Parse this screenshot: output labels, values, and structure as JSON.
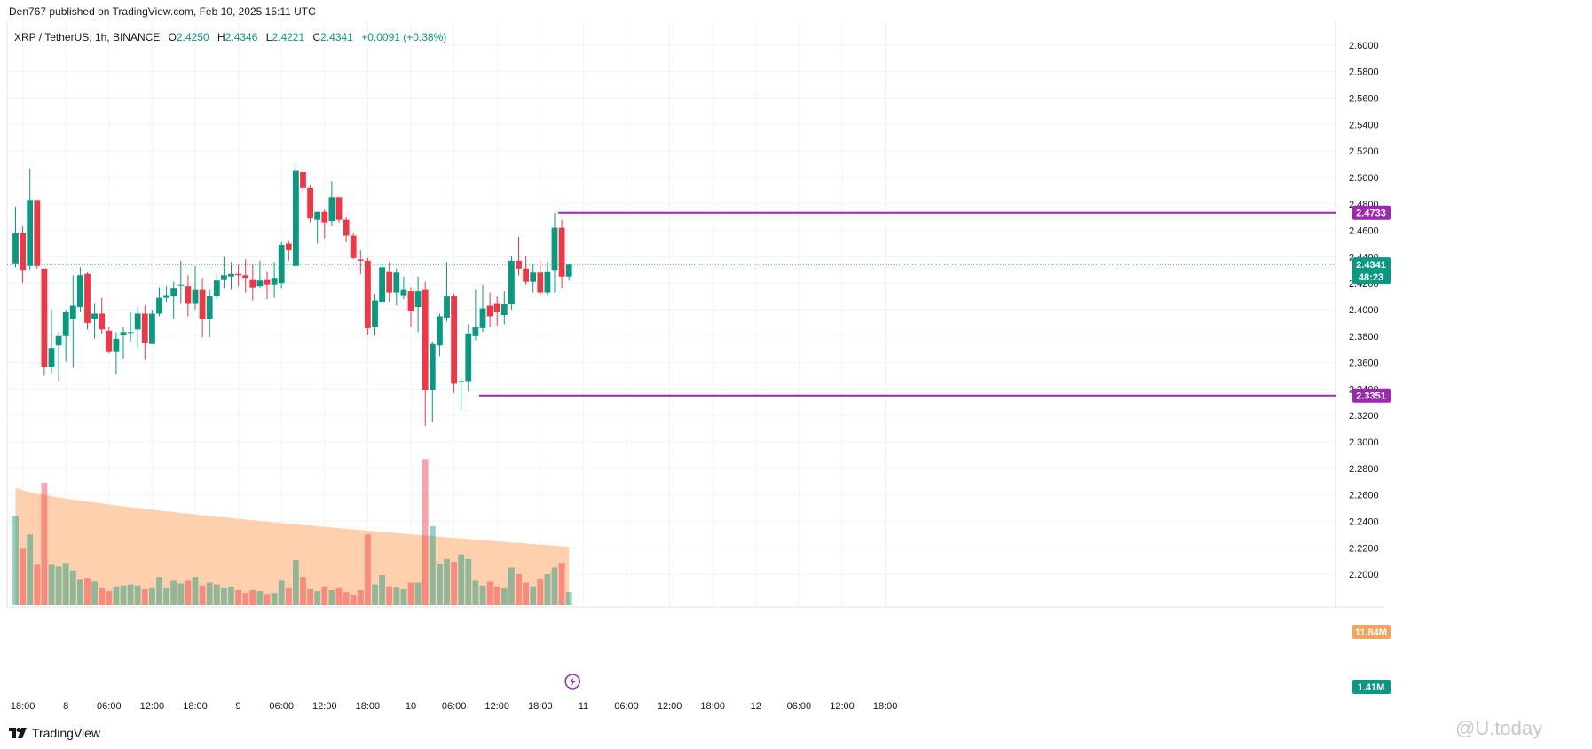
{
  "header": {
    "published": "Den767 published on TradingView.com, Feb 10, 2025 15:11 UTC"
  },
  "legend": {
    "symbol": "XRP / TetherUS, 1h, BINANCE",
    "o_label": "O",
    "o": "2.4250",
    "h_label": "H",
    "h": "2.4346",
    "l_label": "L",
    "l": "2.4221",
    "c_label": "C",
    "c": "2.4341",
    "change": "+0.0091 (+0.38%)"
  },
  "footer": {
    "logo_text": "TradingView",
    "logo_icon": "tradingview-logo-icon",
    "watermark": "@U.today"
  },
  "colors": {
    "up": "#089981",
    "down": "#f23645",
    "level": "#9c27b0",
    "vol_ma": "#ffcba4",
    "grid": "#f0f3fa"
  },
  "chart_data": {
    "type": "candlestick",
    "y_ticks": [
      "2.6000",
      "2.5800",
      "2.5600",
      "2.5400",
      "2.5200",
      "2.5000",
      "2.4800",
      "2.4600",
      "2.4400",
      "2.4200",
      "2.4000",
      "2.3800",
      "2.3600",
      "2.3400",
      "2.3200",
      "2.3000",
      "2.2800",
      "2.2600",
      "2.2400",
      "2.2200",
      "2.2000"
    ],
    "ylim": [
      2.19,
      2.61
    ],
    "x_ticks": [
      {
        "bar": 1,
        "label": "18:00"
      },
      {
        "bar": 7,
        "label": "8"
      },
      {
        "bar": 13,
        "label": "06:00"
      },
      {
        "bar": 19,
        "label": "12:00"
      },
      {
        "bar": 25,
        "label": "18:00"
      },
      {
        "bar": 31,
        "label": "9"
      },
      {
        "bar": 37,
        "label": "06:00"
      },
      {
        "bar": 43,
        "label": "12:00"
      },
      {
        "bar": 49,
        "label": "18:00"
      },
      {
        "bar": 55,
        "label": "10"
      },
      {
        "bar": 61,
        "label": "06:00"
      },
      {
        "bar": 67,
        "label": "12:00"
      },
      {
        "bar": 73,
        "label": "18:00"
      },
      {
        "bar": 79,
        "label": "11"
      },
      {
        "bar": 85,
        "label": "06:00"
      },
      {
        "bar": 91,
        "label": "12:00"
      },
      {
        "bar": 97,
        "label": "18:00"
      },
      {
        "bar": 103,
        "label": "12"
      },
      {
        "bar": 109,
        "label": "06:00"
      },
      {
        "bar": 115,
        "label": "12:00"
      },
      {
        "bar": 121,
        "label": "18:00"
      }
    ],
    "candles": [
      {
        "o": 2.435,
        "h": 2.478,
        "l": 2.432,
        "c": 2.458,
        "v": 9.5
      },
      {
        "o": 2.458,
        "h": 2.463,
        "l": 2.42,
        "c": 2.43,
        "v": 6.0
      },
      {
        "o": 2.433,
        "h": 2.507,
        "l": 2.43,
        "c": 2.483,
        "v": 7.5
      },
      {
        "o": 2.483,
        "h": 2.483,
        "l": 2.431,
        "c": 2.433,
        "v": 4.3
      },
      {
        "o": 2.431,
        "h": 2.431,
        "l": 2.35,
        "c": 2.357,
        "v": 13.0
      },
      {
        "o": 2.357,
        "h": 2.4,
        "l": 2.352,
        "c": 2.371,
        "v": 4.3
      },
      {
        "o": 2.373,
        "h": 2.383,
        "l": 2.346,
        "c": 2.38,
        "v": 4.1
      },
      {
        "o": 2.38,
        "h": 2.4,
        "l": 2.361,
        "c": 2.398,
        "v": 4.5
      },
      {
        "o": 2.393,
        "h": 2.426,
        "l": 2.356,
        "c": 2.403,
        "v": 3.7
      },
      {
        "o": 2.402,
        "h": 2.432,
        "l": 2.398,
        "c": 2.426,
        "v": 2.7
      },
      {
        "o": 2.427,
        "h": 2.428,
        "l": 2.385,
        "c": 2.39,
        "v": 2.9
      },
      {
        "o": 2.393,
        "h": 2.405,
        "l": 2.378,
        "c": 2.397,
        "v": 2.5
      },
      {
        "o": 2.397,
        "h": 2.409,
        "l": 2.382,
        "c": 2.385,
        "v": 1.8
      },
      {
        "o": 2.384,
        "h": 2.387,
        "l": 2.367,
        "c": 2.368,
        "v": 1.5
      },
      {
        "o": 2.368,
        "h": 2.383,
        "l": 2.351,
        "c": 2.378,
        "v": 2.0
      },
      {
        "o": 2.381,
        "h": 2.387,
        "l": 2.363,
        "c": 2.383,
        "v": 2.1
      },
      {
        "o": 2.383,
        "h": 2.398,
        "l": 2.376,
        "c": 2.383,
        "v": 2.2
      },
      {
        "o": 2.385,
        "h": 2.402,
        "l": 2.371,
        "c": 2.397,
        "v": 2.1
      },
      {
        "o": 2.397,
        "h": 2.403,
        "l": 2.362,
        "c": 2.375,
        "v": 1.7
      },
      {
        "o": 2.374,
        "h": 2.4,
        "l": 2.374,
        "c": 2.397,
        "v": 1.8
      },
      {
        "o": 2.397,
        "h": 2.417,
        "l": 2.395,
        "c": 2.409,
        "v": 3.0
      },
      {
        "o": 2.409,
        "h": 2.418,
        "l": 2.406,
        "c": 2.411,
        "v": 1.8
      },
      {
        "o": 2.41,
        "h": 2.421,
        "l": 2.393,
        "c": 2.416,
        "v": 2.6
      },
      {
        "o": 2.419,
        "h": 2.437,
        "l": 2.405,
        "c": 2.419,
        "v": 2.3
      },
      {
        "o": 2.418,
        "h": 2.426,
        "l": 2.395,
        "c": 2.405,
        "v": 2.6
      },
      {
        "o": 2.405,
        "h": 2.433,
        "l": 2.4,
        "c": 2.415,
        "v": 3.0
      },
      {
        "o": 2.415,
        "h": 2.424,
        "l": 2.379,
        "c": 2.393,
        "v": 2.1
      },
      {
        "o": 2.393,
        "h": 2.415,
        "l": 2.379,
        "c": 2.41,
        "v": 2.4
      },
      {
        "o": 2.41,
        "h": 2.427,
        "l": 2.407,
        "c": 2.422,
        "v": 2.2
      },
      {
        "o": 2.423,
        "h": 2.44,
        "l": 2.416,
        "c": 2.426,
        "v": 1.8
      },
      {
        "o": 2.425,
        "h": 2.436,
        "l": 2.415,
        "c": 2.427,
        "v": 2.0
      },
      {
        "o": 2.427,
        "h": 2.434,
        "l": 2.418,
        "c": 2.426,
        "v": 1.6
      },
      {
        "o": 2.426,
        "h": 2.438,
        "l": 2.413,
        "c": 2.424,
        "v": 1.3
      },
      {
        "o": 2.423,
        "h": 2.434,
        "l": 2.407,
        "c": 2.417,
        "v": 1.6
      },
      {
        "o": 2.418,
        "h": 2.437,
        "l": 2.417,
        "c": 2.422,
        "v": 1.5
      },
      {
        "o": 2.423,
        "h": 2.429,
        "l": 2.408,
        "c": 2.419,
        "v": 1.2
      },
      {
        "o": 2.419,
        "h": 2.436,
        "l": 2.409,
        "c": 2.424,
        "v": 1.3
      },
      {
        "o": 2.42,
        "h": 2.451,
        "l": 2.416,
        "c": 2.449,
        "v": 2.6
      },
      {
        "o": 2.45,
        "h": 2.452,
        "l": 2.437,
        "c": 2.445,
        "v": 1.8
      },
      {
        "o": 2.433,
        "h": 2.51,
        "l": 2.432,
        "c": 2.505,
        "v": 4.8
      },
      {
        "o": 2.504,
        "h": 2.507,
        "l": 2.488,
        "c": 2.492,
        "v": 3.0
      },
      {
        "o": 2.492,
        "h": 2.494,
        "l": 2.466,
        "c": 2.469,
        "v": 1.7
      },
      {
        "o": 2.468,
        "h": 2.474,
        "l": 2.45,
        "c": 2.474,
        "v": 1.5
      },
      {
        "o": 2.474,
        "h": 2.476,
        "l": 2.454,
        "c": 2.466,
        "v": 2.0
      },
      {
        "o": 2.467,
        "h": 2.497,
        "l": 2.463,
        "c": 2.485,
        "v": 1.6
      },
      {
        "o": 2.485,
        "h": 2.485,
        "l": 2.466,
        "c": 2.468,
        "v": 1.8
      },
      {
        "o": 2.468,
        "h": 2.47,
        "l": 2.451,
        "c": 2.456,
        "v": 1.4
      },
      {
        "o": 2.456,
        "h": 2.458,
        "l": 2.438,
        "c": 2.439,
        "v": 1.1
      },
      {
        "o": 2.438,
        "h": 2.445,
        "l": 2.427,
        "c": 2.437,
        "v": 1.6
      },
      {
        "o": 2.437,
        "h": 2.439,
        "l": 2.381,
        "c": 2.386,
        "v": 7.5
      },
      {
        "o": 2.387,
        "h": 2.412,
        "l": 2.381,
        "c": 2.407,
        "v": 2.2
      },
      {
        "o": 2.406,
        "h": 2.436,
        "l": 2.404,
        "c": 2.432,
        "v": 3.2
      },
      {
        "o": 2.429,
        "h": 2.436,
        "l": 2.406,
        "c": 2.413,
        "v": 2.0
      },
      {
        "o": 2.413,
        "h": 2.431,
        "l": 2.403,
        "c": 2.428,
        "v": 1.9
      },
      {
        "o": 2.411,
        "h": 2.425,
        "l": 2.408,
        "c": 2.415,
        "v": 1.7
      },
      {
        "o": 2.414,
        "h": 2.417,
        "l": 2.387,
        "c": 2.399,
        "v": 2.4
      },
      {
        "o": 2.402,
        "h": 2.425,
        "l": 2.383,
        "c": 2.414,
        "v": 2.4
      },
      {
        "o": 2.415,
        "h": 2.421,
        "l": 2.312,
        "c": 2.339,
        "v": 15.5
      },
      {
        "o": 2.339,
        "h": 2.376,
        "l": 2.315,
        "c": 2.374,
        "v": 8.4
      },
      {
        "o": 2.373,
        "h": 2.397,
        "l": 2.365,
        "c": 2.395,
        "v": 4.4
      },
      {
        "o": 2.394,
        "h": 2.436,
        "l": 2.391,
        "c": 2.41,
        "v": 4.9
      },
      {
        "o": 2.41,
        "h": 2.412,
        "l": 2.337,
        "c": 2.344,
        "v": 4.6
      },
      {
        "o": 2.345,
        "h": 2.349,
        "l": 2.324,
        "c": 2.346,
        "v": 5.4
      },
      {
        "o": 2.346,
        "h": 2.389,
        "l": 2.338,
        "c": 2.382,
        "v": 4.9
      },
      {
        "o": 2.38,
        "h": 2.415,
        "l": 2.377,
        "c": 2.387,
        "v": 2.6
      },
      {
        "o": 2.386,
        "h": 2.419,
        "l": 2.383,
        "c": 2.401,
        "v": 2.1
      },
      {
        "o": 2.403,
        "h": 2.413,
        "l": 2.387,
        "c": 2.395,
        "v": 2.5
      },
      {
        "o": 2.405,
        "h": 2.41,
        "l": 2.388,
        "c": 2.398,
        "v": 2.0
      },
      {
        "o": 2.396,
        "h": 2.414,
        "l": 2.389,
        "c": 2.404,
        "v": 1.8
      },
      {
        "o": 2.404,
        "h": 2.441,
        "l": 2.4,
        "c": 2.437,
        "v": 4.0
      },
      {
        "o": 2.437,
        "h": 2.455,
        "l": 2.426,
        "c": 2.431,
        "v": 3.3
      },
      {
        "o": 2.431,
        "h": 2.441,
        "l": 2.419,
        "c": 2.421,
        "v": 2.4
      },
      {
        "o": 2.421,
        "h": 2.435,
        "l": 2.413,
        "c": 2.428,
        "v": 2.0
      },
      {
        "o": 2.428,
        "h": 2.437,
        "l": 2.411,
        "c": 2.413,
        "v": 2.8
      },
      {
        "o": 2.413,
        "h": 2.436,
        "l": 2.411,
        "c": 2.429,
        "v": 3.3
      },
      {
        "o": 2.43,
        "h": 2.473,
        "l": 2.413,
        "c": 2.462,
        "v": 4.0
      },
      {
        "o": 2.462,
        "h": 2.468,
        "l": 2.416,
        "c": 2.425,
        "v": 4.5
      },
      {
        "o": 2.425,
        "h": 2.435,
        "l": 2.422,
        "c": 2.434,
        "v": 1.41
      }
    ],
    "volume_ma_start": 12.5,
    "volume_ma_end": 6.2,
    "volume_scale_max": 16,
    "levels": [
      {
        "price": 2.4733,
        "label": "2.4733",
        "from_bar": 76
      },
      {
        "price": 2.3351,
        "label": "2.3351",
        "from_bar": 65
      }
    ],
    "last_price": {
      "label": "2.4341",
      "countdown": "48:23",
      "price": 2.4341
    },
    "volume_ma_label": "11.84M",
    "volume_last_label": "1.41M"
  }
}
